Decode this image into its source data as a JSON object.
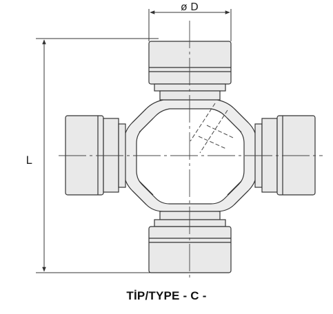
{
  "drawing": {
    "diameter_label": "ø D",
    "length_label": "L",
    "caption": "TİP/TYPE - C -"
  },
  "colors": {
    "body_fill": "#e9e9e9",
    "line": "#333333",
    "background": "#ffffff"
  }
}
